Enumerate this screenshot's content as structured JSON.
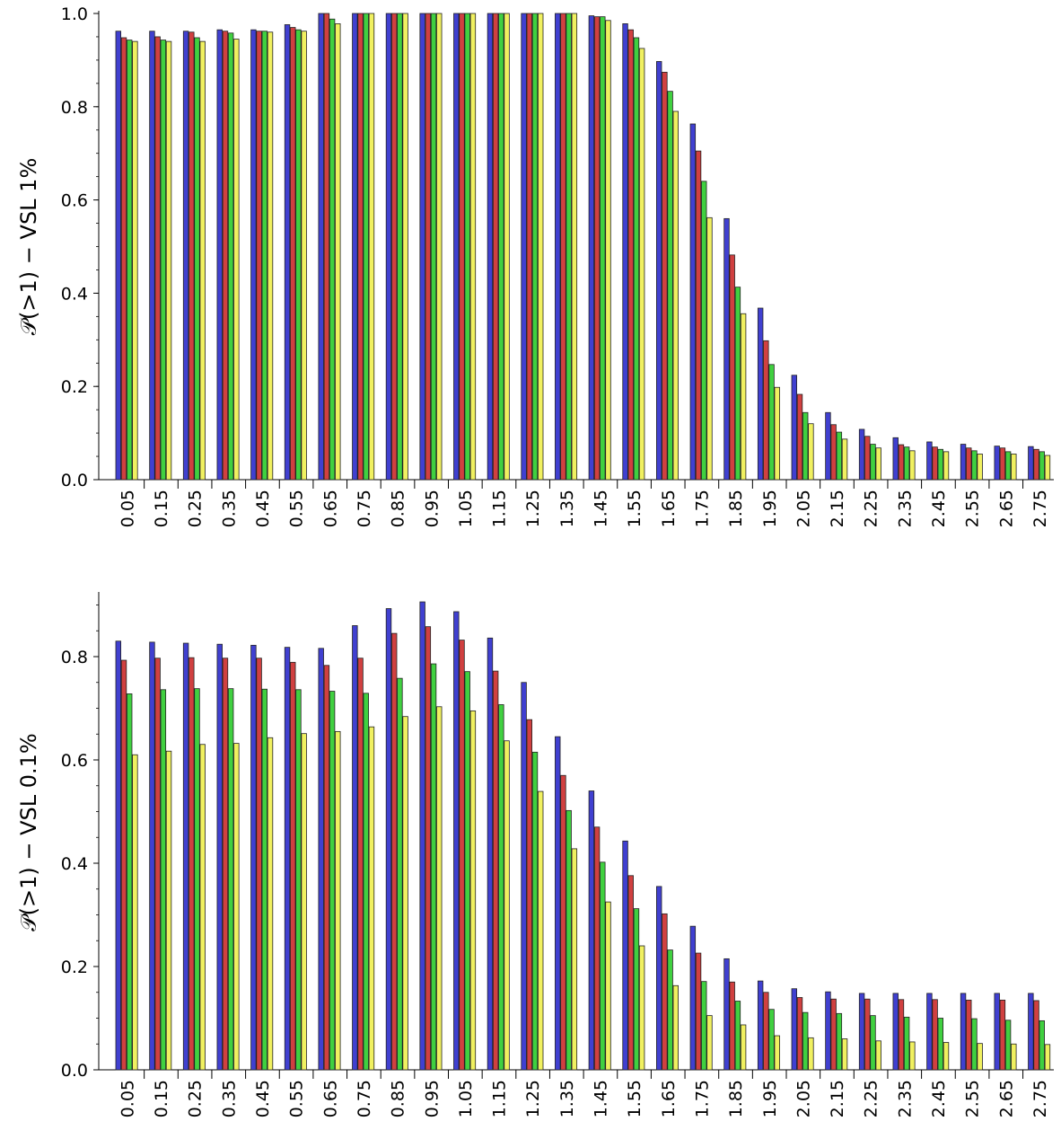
{
  "colors": {
    "series": [
      "#4040d0",
      "#d04040",
      "#40d040",
      "#f0f060"
    ],
    "stroke": "#222222",
    "axis": "#000000"
  },
  "chart_data": [
    {
      "type": "bar",
      "ylabel": "𝒫(>1)  −  VSL 1%",
      "ylim": [
        0,
        1.0
      ],
      "yticks": [
        "0.0",
        "0.2",
        "0.4",
        "0.6",
        "0.8",
        "1.0"
      ],
      "categories": [
        "0.05",
        "0.15",
        "0.25",
        "0.35",
        "0.45",
        "0.55",
        "0.65",
        "0.75",
        "0.85",
        "0.95",
        "1.05",
        "1.15",
        "1.25",
        "1.35",
        "1.45",
        "1.55",
        "1.65",
        "1.75",
        "1.85",
        "1.95",
        "2.05",
        "2.15",
        "2.25",
        "2.35",
        "2.45",
        "2.55",
        "2.65",
        "2.75"
      ],
      "series": [
        {
          "values": [
            0.962,
            0.962,
            0.962,
            0.965,
            0.965,
            0.976,
            1.0,
            1.0,
            1.0,
            1.0,
            1.0,
            1.0,
            1.0,
            1.0,
            0.995,
            0.978,
            0.897,
            0.763,
            0.56,
            0.368,
            0.224,
            0.144,
            0.108,
            0.09,
            0.081,
            0.076,
            0.072,
            0.071
          ]
        },
        {
          "values": [
            0.948,
            0.95,
            0.96,
            0.962,
            0.962,
            0.97,
            1.0,
            1.0,
            1.0,
            1.0,
            1.0,
            1.0,
            1.0,
            1.0,
            0.993,
            0.965,
            0.874,
            0.705,
            0.482,
            0.298,
            0.183,
            0.118,
            0.093,
            0.075,
            0.07,
            0.068,
            0.068,
            0.065
          ]
        },
        {
          "values": [
            0.943,
            0.943,
            0.948,
            0.958,
            0.962,
            0.965,
            0.988,
            1.0,
            1.0,
            1.0,
            1.0,
            1.0,
            1.0,
            1.0,
            0.993,
            0.948,
            0.833,
            0.64,
            0.413,
            0.247,
            0.144,
            0.102,
            0.076,
            0.07,
            0.065,
            0.062,
            0.06,
            0.06
          ]
        },
        {
          "values": [
            0.94,
            0.94,
            0.94,
            0.945,
            0.96,
            0.962,
            0.978,
            1.0,
            1.0,
            1.0,
            1.0,
            1.0,
            1.0,
            1.0,
            0.985,
            0.925,
            0.79,
            0.562,
            0.356,
            0.198,
            0.12,
            0.087,
            0.068,
            0.062,
            0.06,
            0.055,
            0.055,
            0.052
          ]
        }
      ]
    },
    {
      "type": "bar",
      "ylabel": "𝒫(>1)  −  VSL 0.1%",
      "ylim": [
        0,
        0.92
      ],
      "yticks": [
        "0.0",
        "0.2",
        "0.4",
        "0.6",
        "0.8"
      ],
      "categories": [
        "0.05",
        "0.15",
        "0.25",
        "0.35",
        "0.45",
        "0.55",
        "0.65",
        "0.75",
        "0.85",
        "0.95",
        "1.05",
        "1.15",
        "1.25",
        "1.35",
        "1.45",
        "1.55",
        "1.65",
        "1.75",
        "1.85",
        "1.95",
        "2.05",
        "2.15",
        "2.25",
        "2.35",
        "2.45",
        "2.55",
        "2.65",
        "2.75"
      ],
      "series": [
        {
          "values": [
            0.83,
            0.828,
            0.826,
            0.824,
            0.822,
            0.818,
            0.816,
            0.86,
            0.893,
            0.906,
            0.887,
            0.836,
            0.75,
            0.645,
            0.54,
            0.443,
            0.355,
            0.278,
            0.215,
            0.172,
            0.157,
            0.151,
            0.148,
            0.148,
            0.148,
            0.148,
            0.148,
            0.148
          ]
        },
        {
          "values": [
            0.793,
            0.797,
            0.798,
            0.797,
            0.797,
            0.789,
            0.783,
            0.797,
            0.845,
            0.858,
            0.832,
            0.772,
            0.678,
            0.57,
            0.47,
            0.376,
            0.302,
            0.226,
            0.17,
            0.15,
            0.14,
            0.137,
            0.137,
            0.136,
            0.136,
            0.135,
            0.135,
            0.134
          ]
        },
        {
          "values": [
            0.728,
            0.736,
            0.738,
            0.738,
            0.737,
            0.736,
            0.733,
            0.729,
            0.758,
            0.786,
            0.771,
            0.707,
            0.615,
            0.502,
            0.402,
            0.312,
            0.232,
            0.171,
            0.133,
            0.117,
            0.111,
            0.109,
            0.105,
            0.102,
            0.1,
            0.099,
            0.096,
            0.095
          ]
        },
        {
          "values": [
            0.61,
            0.617,
            0.63,
            0.632,
            0.643,
            0.651,
            0.655,
            0.664,
            0.684,
            0.703,
            0.695,
            0.637,
            0.539,
            0.428,
            0.325,
            0.24,
            0.163,
            0.105,
            0.087,
            0.066,
            0.062,
            0.06,
            0.056,
            0.054,
            0.053,
            0.051,
            0.05,
            0.049
          ]
        }
      ]
    }
  ]
}
